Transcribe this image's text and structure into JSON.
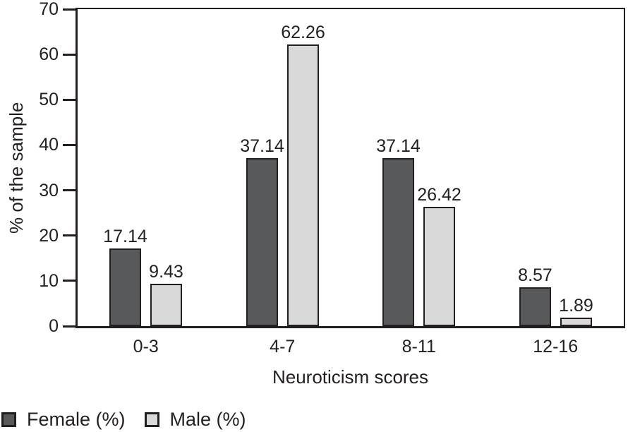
{
  "chart_data": {
    "type": "bar",
    "title": "",
    "categories": [
      "0-3",
      "4-7",
      "8-11",
      "12-16"
    ],
    "series": [
      {
        "name": "Female (%)",
        "color": "#58595b",
        "values": [
          17.14,
          37.14,
          37.14,
          8.57
        ]
      },
      {
        "name": "Male (%)",
        "color": "#d9d9d9",
        "values": [
          9.43,
          62.26,
          26.42,
          1.89
        ]
      }
    ],
    "xlabel": "Neuroticism scores",
    "ylabel": "% of the sample",
    "ylim": [
      0,
      70
    ],
    "yticks": [
      0,
      10,
      20,
      30,
      40,
      50,
      60,
      70
    ],
    "grid": false,
    "value_labels_shown": true,
    "legend_position": "bottom-left",
    "colors": {
      "text": "#231f20",
      "axis": "#231f20",
      "bar_border": "#231f20",
      "background": "#ffffff"
    }
  }
}
